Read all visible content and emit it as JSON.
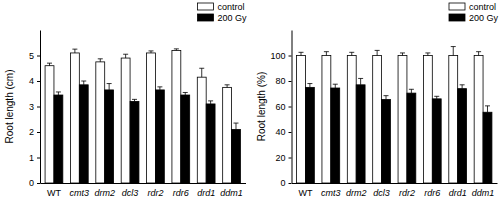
{
  "chart_data": [
    {
      "type": "bar",
      "y_label": "Root length (cm)",
      "categories": [
        "WT",
        "cmt3",
        "drm2",
        "dcl3",
        "rdr2",
        "rdr6",
        "drd1",
        "ddm1"
      ],
      "series": [
        {
          "name": "control",
          "color": "#ffffff",
          "values": [
            4.6,
            5.1,
            4.75,
            4.9,
            5.1,
            5.2,
            4.15,
            3.75
          ],
          "errors": [
            0.1,
            0.15,
            0.12,
            0.15,
            0.08,
            0.06,
            0.35,
            0.1
          ]
        },
        {
          "name": "200 Gy",
          "color": "#000000",
          "values": [
            3.45,
            3.85,
            3.65,
            3.2,
            3.65,
            3.45,
            3.1,
            2.1
          ],
          "errors": [
            0.12,
            0.15,
            0.25,
            0.08,
            0.12,
            0.1,
            0.12,
            0.25
          ]
        }
      ],
      "ylim": [
        0,
        6
      ],
      "yticks": [
        0,
        1,
        2,
        3,
        4,
        5
      ],
      "legend": "upper right"
    },
    {
      "type": "bar",
      "y_label": "Root length (%)",
      "categories": [
        "WT",
        "cmt3",
        "drm2",
        "dcl3",
        "rdr2",
        "rdr6",
        "drd1",
        "ddm1"
      ],
      "series": [
        {
          "name": "control",
          "color": "#ffffff",
          "values": [
            100,
            100,
            100,
            100,
            100,
            100,
            100,
            100
          ],
          "errors": [
            2.5,
            3,
            2.5,
            4,
            2,
            2,
            7,
            3
          ]
        },
        {
          "name": "200 Gy",
          "color": "#000000",
          "values": [
            75,
            74.5,
            77,
            65.5,
            70.5,
            66,
            74,
            55.5
          ],
          "errors": [
            3,
            3,
            5,
            3,
            3,
            2,
            3,
            5
          ]
        }
      ],
      "ylim": [
        0,
        120
      ],
      "yticks": [
        0,
        20,
        40,
        60,
        80,
        100
      ],
      "legend": "upper right"
    }
  ]
}
